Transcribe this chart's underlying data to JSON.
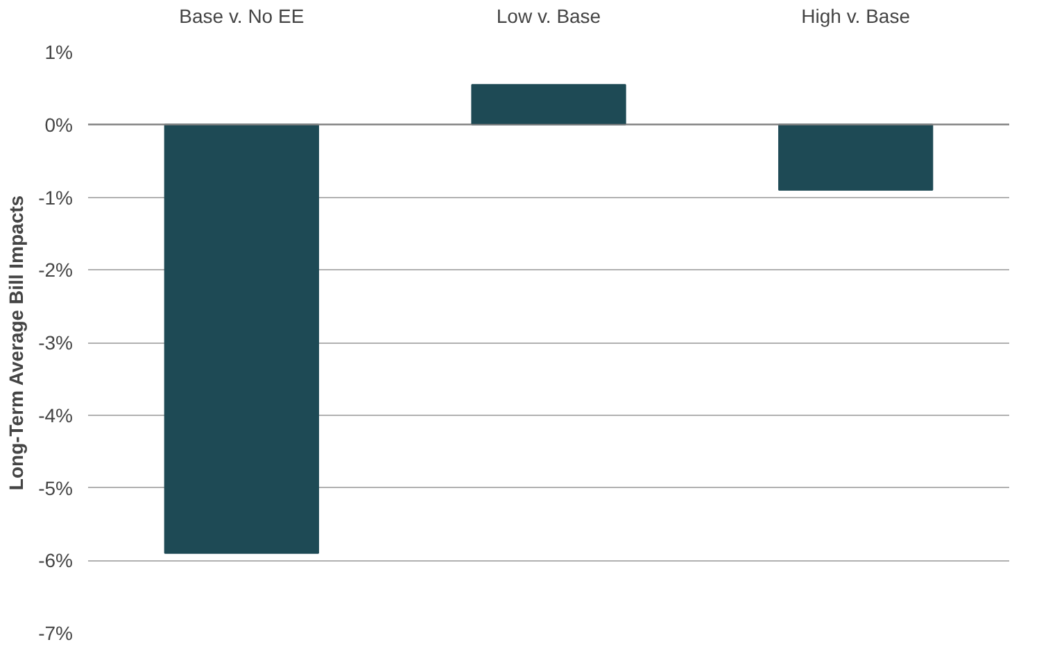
{
  "chart_data": {
    "type": "bar",
    "ylabel": "Long-Term Average Bill Impacts",
    "categories": [
      "Base v. No EE",
      "Low v. Base",
      "High v. Base"
    ],
    "values": [
      -5.9,
      0.55,
      -0.9
    ],
    "color": "#1e4a55",
    "ylim": [
      -7,
      1
    ],
    "yticks": [
      {
        "value": 1,
        "label": "1%"
      },
      {
        "value": 0,
        "label": "0%"
      },
      {
        "value": -1,
        "label": "-1%"
      },
      {
        "value": -2,
        "label": "-2%"
      },
      {
        "value": -3,
        "label": "-3%"
      },
      {
        "value": -4,
        "label": "-4%"
      },
      {
        "value": -5,
        "label": "-5%"
      },
      {
        "value": -6,
        "label": "-6%"
      },
      {
        "value": -7,
        "label": "-7%"
      }
    ],
    "grid": "y"
  }
}
